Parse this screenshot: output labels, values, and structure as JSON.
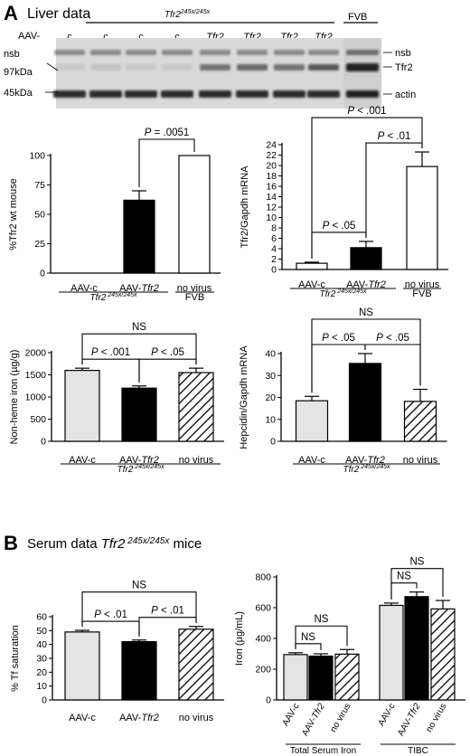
{
  "panelA": {
    "letter": "A",
    "title": "Liver data",
    "blot": {
      "genotype_label": "Tfr2",
      "genotype_sup": "245x/245x",
      "fvb_label": "FVB",
      "aav_label": "AAV-",
      "lanes": [
        "c",
        "c",
        "c",
        "c",
        "Tfr2",
        "Tfr2",
        "Tfr2",
        "Tfr2"
      ],
      "left_labels": [
        "nsb",
        "97kDa",
        "45kDa"
      ],
      "right_labels": [
        "nsb",
        "Tfr2",
        "actin"
      ]
    }
  },
  "panelB": {
    "letter": "B",
    "title_main": "Serum data ",
    "title_gene": "Tfr2",
    "title_sup": " 245x/245x",
    "title_tail": " mice"
  },
  "chart_data": [
    {
      "id": "tfr2-protein",
      "type": "bar",
      "ylabel": "%Tfr2 wt mouse",
      "ylim": [
        0,
        100
      ],
      "yticks": [
        0,
        25,
        50,
        75,
        100
      ],
      "categories": [
        "AAV-c",
        "AAV-Tfr2",
        "no virus"
      ],
      "values": [
        0,
        62,
        100
      ],
      "errors": [
        0,
        8,
        0
      ],
      "fills": [
        "light",
        "black",
        "white"
      ],
      "group_label": "Tfr2",
      "group_sup": " 245x/245x",
      "group2_label": "FVB",
      "annotations": [
        {
          "text": "P = .0051",
          "from": 1,
          "to": 2
        }
      ]
    },
    {
      "id": "tfr2-mrna",
      "type": "bar",
      "ylabel": "Tfr2/Gapdh mRNA",
      "ylim": [
        0,
        24
      ],
      "yticks": [
        0,
        2,
        4,
        6,
        8,
        10,
        12,
        14,
        16,
        18,
        20,
        22,
        24
      ],
      "categories": [
        "AAV-c",
        "AAV-Tfr2",
        "no virus"
      ],
      "values": [
        1.2,
        4.2,
        19.8
      ],
      "errors": [
        0.2,
        1.2,
        2.8
      ],
      "fills": [
        "white",
        "black",
        "white"
      ],
      "group_label": "Tfr2",
      "group_sup": " 245x/245x",
      "group2_label": "FVB",
      "annotations": [
        {
          "text": "P < .05",
          "from": 0,
          "to": 1
        },
        {
          "text": "P < .01",
          "from": 1,
          "to": 2
        },
        {
          "text": "P < .001",
          "from": 0,
          "to": 2
        }
      ]
    },
    {
      "id": "nonheme-iron",
      "type": "bar",
      "ylabel": "Non-heme iron (µg/g)",
      "ylim": [
        0,
        2000
      ],
      "yticks": [
        0,
        500,
        1000,
        1500,
        2000
      ],
      "categories": [
        "AAV-c",
        "AAV-Tfr2",
        "no virus"
      ],
      "values": [
        1600,
        1200,
        1550
      ],
      "errors": [
        50,
        50,
        100
      ],
      "fills": [
        "light",
        "black",
        "hatch"
      ],
      "group_label": "Tfr2",
      "group_sup": " 245x/245x",
      "annotations": [
        {
          "text": "P < .001",
          "from": 0,
          "to": 1
        },
        {
          "text": "P < .05",
          "from": 1,
          "to": 2
        },
        {
          "text": "NS",
          "from": 0,
          "to": 2
        }
      ]
    },
    {
      "id": "hepcidin-mrna",
      "type": "bar",
      "ylabel": "Hepcidin/Gapdh mRNA",
      "ylim": [
        0,
        40
      ],
      "yticks": [
        0,
        10,
        20,
        30,
        40
      ],
      "categories": [
        "AAV-c",
        "AAV-Tfr2",
        "no virus"
      ],
      "values": [
        18.5,
        35.5,
        18.2
      ],
      "errors": [
        2,
        4.5,
        5.5
      ],
      "fills": [
        "light",
        "black",
        "hatch"
      ],
      "group_label": "Tfr2",
      "group_sup": " 245x/245x",
      "annotations": [
        {
          "text": "P < .05",
          "from": 0,
          "to": 1
        },
        {
          "text": "P < .05",
          "from": 1,
          "to": 2
        },
        {
          "text": "NS",
          "from": 0,
          "to": 2
        }
      ]
    },
    {
      "id": "tf-saturation",
      "type": "bar",
      "ylabel": "% Tf saturation",
      "ylim": [
        0,
        60
      ],
      "yticks": [
        0,
        10,
        20,
        30,
        40,
        50,
        60
      ],
      "categories": [
        "AAV-c",
        "AAV-Tfr2",
        "no virus"
      ],
      "values": [
        49,
        42,
        51
      ],
      "errors": [
        1.2,
        1.2,
        2
      ],
      "fills": [
        "light",
        "black",
        "hatch"
      ],
      "annotations": [
        {
          "text": "P < .01",
          "from": 0,
          "to": 1
        },
        {
          "text": "P < .01",
          "from": 1,
          "to": 2
        },
        {
          "text": "NS",
          "from": 0,
          "to": 2
        }
      ]
    },
    {
      "id": "serum-iron",
      "type": "bar",
      "ylabel": "Iron (µg/mL)",
      "ylim": [
        0,
        800
      ],
      "yticks": [
        0,
        200,
        400,
        600,
        800
      ],
      "categories": [
        "AAV-c",
        "AAV-Tfr2",
        "no virus",
        "AAV-c",
        "AAV-Tfr2",
        "no virus"
      ],
      "values": [
        295,
        285,
        298,
        615,
        672,
        592
      ],
      "errors": [
        12,
        15,
        30,
        15,
        30,
        55
      ],
      "fills": [
        "light",
        "black",
        "hatch",
        "light",
        "black",
        "hatch"
      ],
      "groups": [
        "Total Serum Iron",
        "TIBC"
      ],
      "annotations": [
        {
          "text": "NS",
          "from": 0,
          "to": 1
        },
        {
          "text": "NS",
          "from": 0,
          "to": 2
        },
        {
          "text": "NS",
          "from": 3,
          "to": 4
        },
        {
          "text": "NS",
          "from": 3,
          "to": 5
        }
      ]
    }
  ]
}
